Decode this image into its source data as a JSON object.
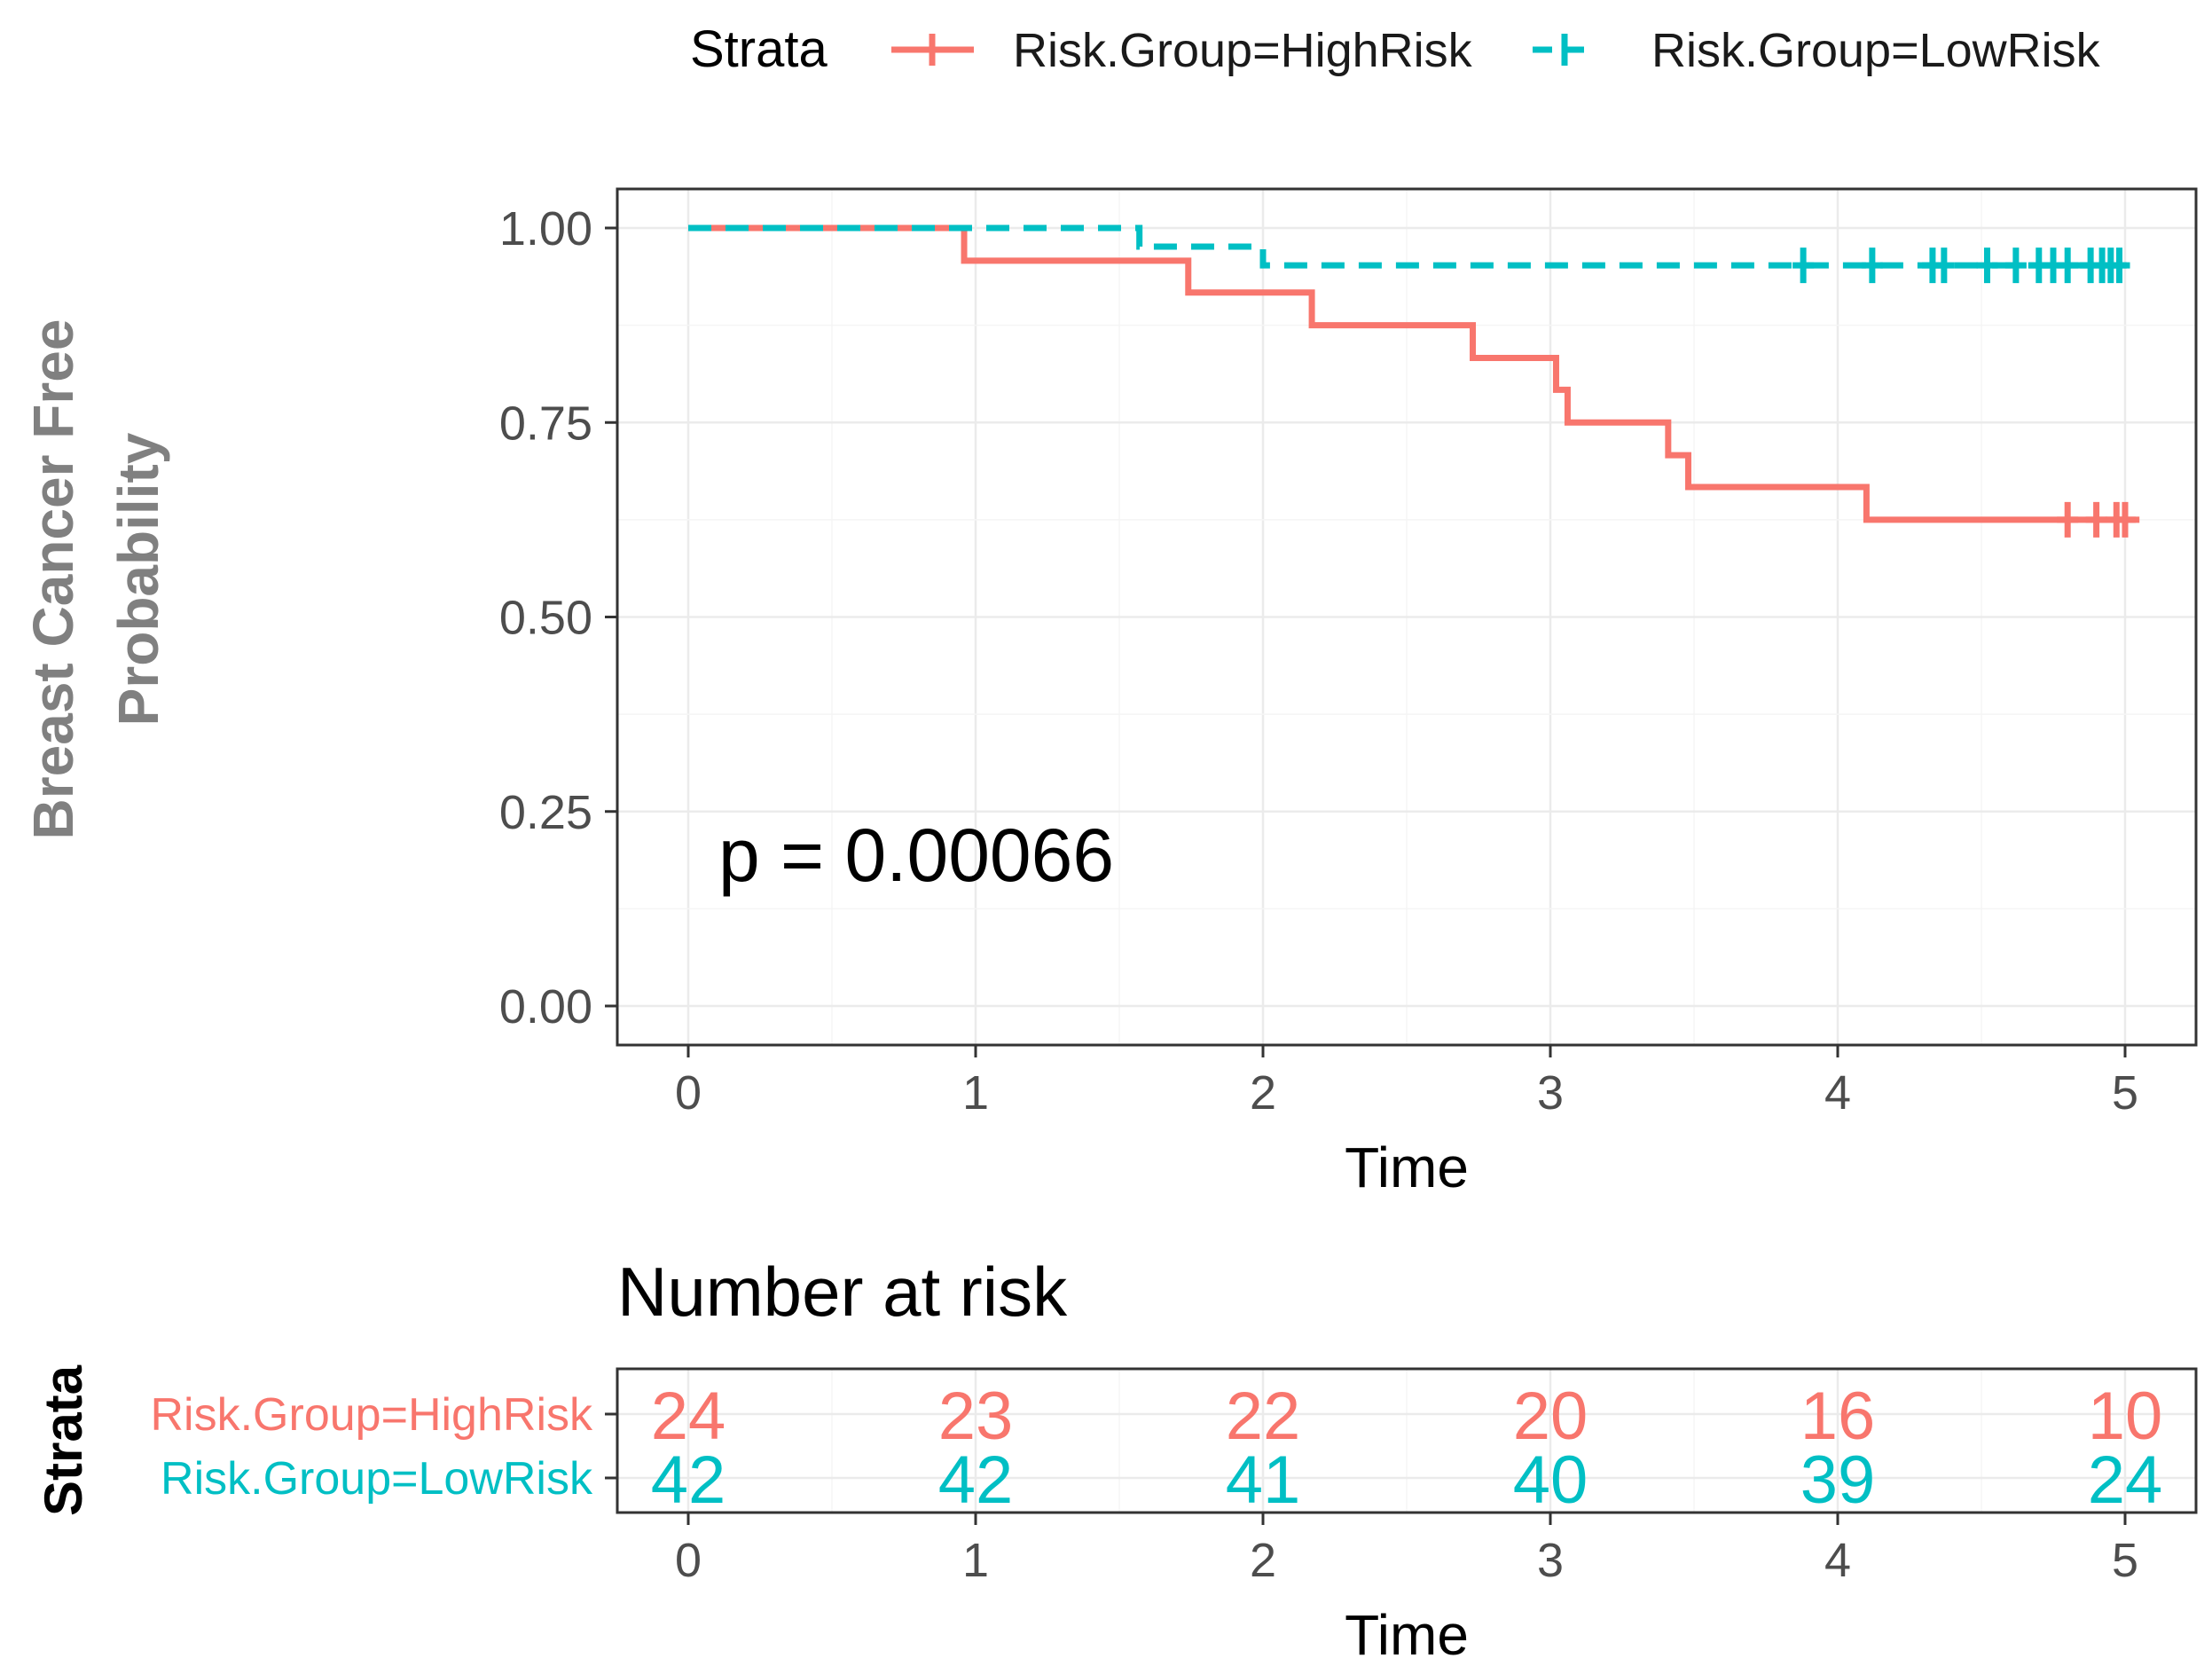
{
  "chart_data": [
    {
      "type": "line",
      "subtype": "kaplan-meier",
      "title": "",
      "xlabel": "Time",
      "ylabel": "Breast Cancer Free Probability",
      "ylabel_lines": [
        "Breast Cancer Free",
        "Probability"
      ],
      "xlim": [
        0,
        5
      ],
      "ylim": [
        0,
        1
      ],
      "xticks": [
        0,
        1,
        2,
        3,
        4,
        5
      ],
      "xtick_labels": [
        "0",
        "1",
        "2",
        "3",
        "4",
        "5"
      ],
      "yticks": [
        0,
        0.25,
        0.5,
        0.75,
        1
      ],
      "ytick_labels": [
        "0.00",
        "0.25",
        "0.50",
        "0.75",
        "1.00"
      ],
      "grid": true,
      "legend": {
        "title": "Strata",
        "position": "top",
        "entries": [
          "Risk.Group=HighRisk",
          "Risk.Group=LowRisk"
        ]
      },
      "annotation": "p = 0.00066",
      "series": [
        {
          "name": "Risk.Group=HighRisk",
          "color": "#f8766d",
          "linestyle": "solid",
          "steps": [
            [
              0,
              1.0
            ],
            [
              0.96,
              0.958
            ],
            [
              1.74,
              0.917
            ],
            [
              2.17,
              0.875
            ],
            [
              2.73,
              0.833
            ],
            [
              3.02,
              0.792
            ],
            [
              3.06,
              0.75
            ],
            [
              3.41,
              0.708
            ],
            [
              3.48,
              0.667
            ],
            [
              4.1,
              0.625
            ],
            [
              5.05,
              0.625
            ]
          ],
          "censor_times": [
            4.8,
            4.9,
            4.97,
            5.0
          ]
        },
        {
          "name": "Risk.Group=LowRisk",
          "color": "#00bfc4",
          "linestyle": "dashed",
          "steps": [
            [
              0,
              1.0
            ],
            [
              1.57,
              0.976
            ],
            [
              2.0,
              0.952
            ],
            [
              5.05,
              0.952
            ]
          ],
          "censor_times": [
            3.88,
            4.12,
            4.33,
            4.37,
            4.52,
            4.62,
            4.7,
            4.75,
            4.8,
            4.88,
            4.92,
            4.95,
            4.98
          ]
        }
      ]
    },
    {
      "type": "table",
      "title": "Number at risk",
      "xlabel": "Time",
      "ylabel": "Strata",
      "xticks": [
        0,
        1,
        2,
        3,
        4,
        5
      ],
      "xtick_labels": [
        "0",
        "1",
        "2",
        "3",
        "4",
        "5"
      ],
      "rows": [
        {
          "name": "Risk.Group=HighRisk",
          "color": "#f8766d",
          "values": [
            "24",
            "23",
            "22",
            "20",
            "16",
            "10"
          ]
        },
        {
          "name": "Risk.Group=LowRisk",
          "color": "#00bfc4",
          "values": [
            "42",
            "42",
            "41",
            "40",
            "39",
            "24"
          ]
        }
      ]
    }
  ]
}
